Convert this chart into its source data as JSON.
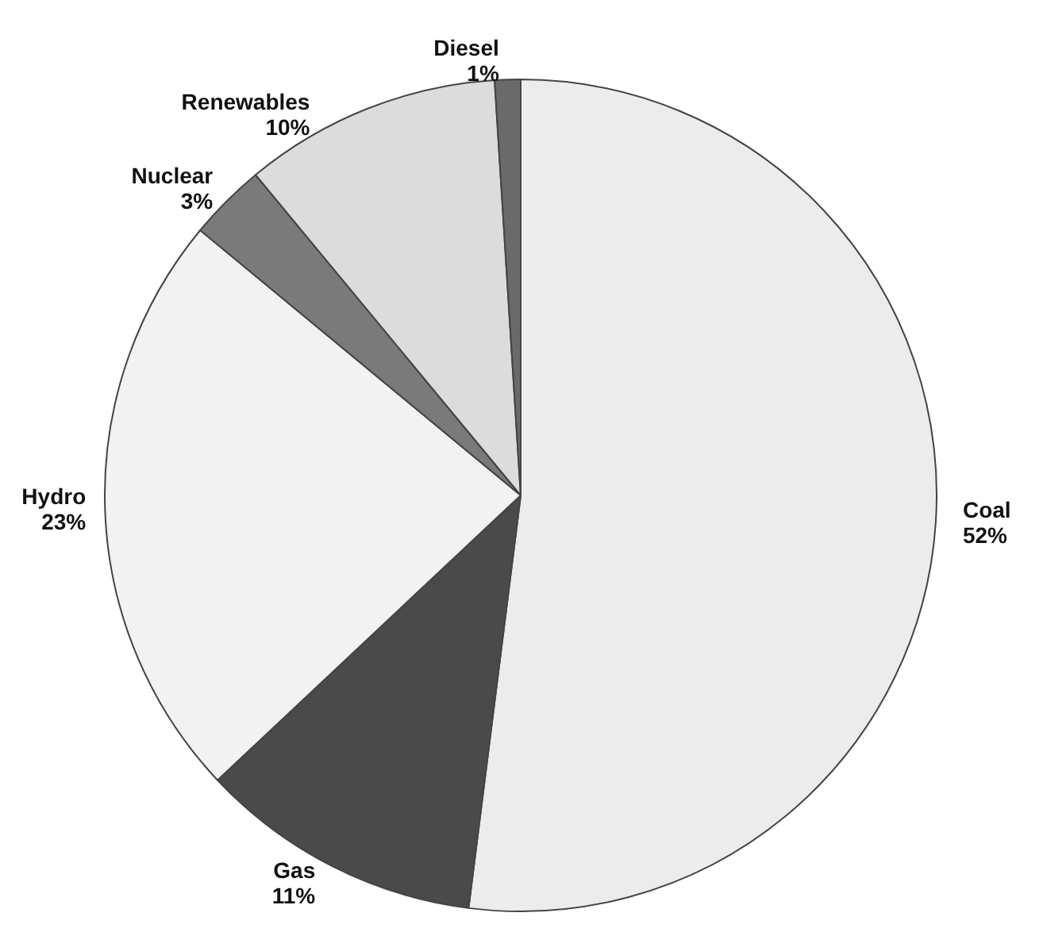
{
  "chart_data": {
    "type": "pie",
    "categories": [
      "Coal",
      "Gas",
      "Hydro",
      "Nuclear",
      "Renewables",
      "Diesel"
    ],
    "values": [
      52,
      11,
      23,
      3,
      10,
      1
    ],
    "value_labels": [
      "52%",
      "11%",
      "23%",
      "3%",
      "10%",
      "1%"
    ],
    "colors": [
      "#ececec",
      "#4a4a4a",
      "#f2f2f2",
      "#7a7a7a",
      "#dcdcdc",
      "#6a6a6a"
    ]
  }
}
